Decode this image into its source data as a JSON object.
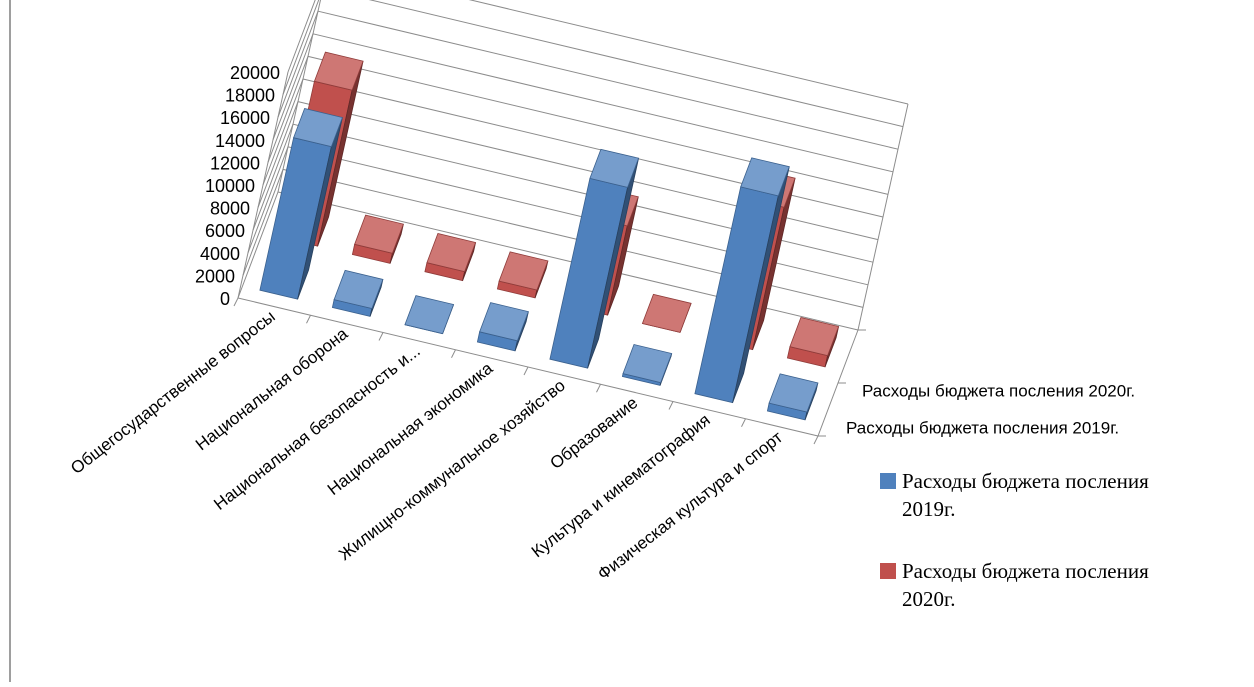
{
  "chart_data": {
    "type": "bar",
    "title": "",
    "xlabel": "",
    "ylabel": "",
    "ylim": [
      0,
      20000
    ],
    "yticks": [
      "0",
      "2000",
      "4000",
      "6000",
      "8000",
      "10000",
      "12000",
      "14000",
      "16000",
      "18000",
      "20000"
    ],
    "categories": [
      "Общегосударственные вопросы",
      "Национальная оборона",
      "Национальная безопасность и...",
      "Национальная экономика",
      "Жилищно-коммунальное хозяйство",
      "Образование",
      "Культура и кинематография",
      "Физическая культура и спорт"
    ],
    "series": [
      {
        "name": "Расходы бюджета посления 2019г.",
        "depth_label": "Расходы бюджета посления 2019г.",
        "legend_line1": "Расходы бюджета посления",
        "legend_line2": "2019г.",
        "color": "#4f81bd",
        "values": [
          13500,
          700,
          0,
          900,
          16000,
          250,
          18300,
          700
        ]
      },
      {
        "name": "Расходы бюджета посления 2020г.",
        "depth_label": "Расходы бюджета посления 2020г.",
        "legend_line1": "Расходы бюджета посления",
        "legend_line2": "2020г.",
        "color": "#c0504d",
        "values": [
          13800,
          900,
          800,
          700,
          7900,
          0,
          12600,
          1000
        ]
      }
    ],
    "grid": true,
    "legend": "right"
  }
}
